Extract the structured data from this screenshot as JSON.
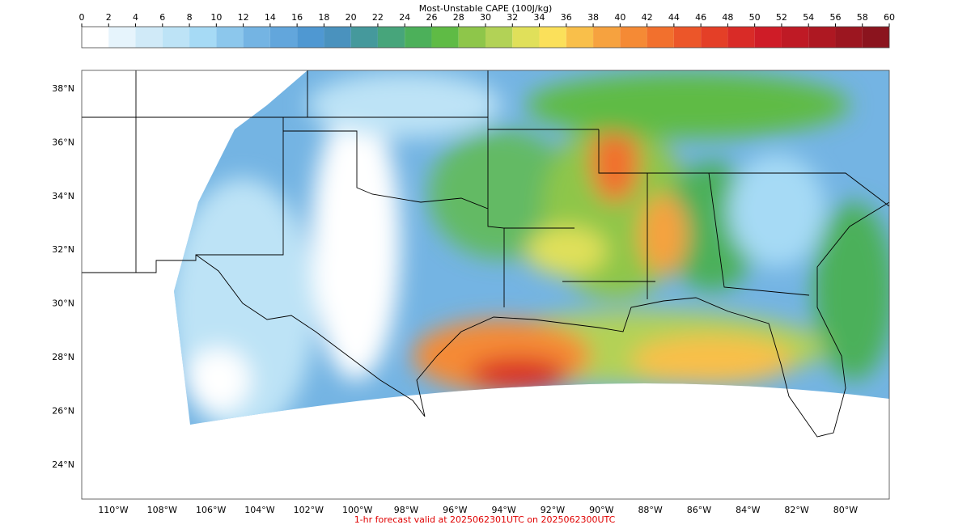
{
  "colorbar": {
    "title": "Most-Unstable CAPE (100J/kg)",
    "ticks": [
      0,
      2,
      4,
      6,
      8,
      10,
      12,
      14,
      16,
      18,
      20,
      22,
      24,
      26,
      28,
      30,
      32,
      34,
      36,
      38,
      40,
      42,
      44,
      46,
      48,
      50,
      52,
      54,
      56,
      58,
      60
    ],
    "colors": [
      "#ffffff",
      "#e6f4fc",
      "#d0eaf8",
      "#bde3f6",
      "#a6daf5",
      "#8cc7ec",
      "#74b4e3",
      "#62a6dc",
      "#4f98d2",
      "#4a92be",
      "#45999c",
      "#47a57b",
      "#4cb05a",
      "#5fbb45",
      "#8ec64a",
      "#b2d256",
      "#e0e05a",
      "#fbe05a",
      "#f9bf4a",
      "#f6a23f",
      "#f58a35",
      "#f2702d",
      "#ec5629",
      "#e43f27",
      "#d92b27",
      "#cf1c27",
      "#bf1a25",
      "#ae1822",
      "#9c1620",
      "#8b141e"
    ]
  },
  "map": {
    "lat_labels": [
      "38°N",
      "36°N",
      "34°N",
      "32°N",
      "30°N",
      "28°N",
      "26°N",
      "24°N"
    ],
    "lon_labels": [
      "110°W",
      "108°W",
      "106°W",
      "104°W",
      "102°W",
      "100°W",
      "98°W",
      "96°W",
      "94°W",
      "92°W",
      "90°W",
      "88°W",
      "86°W",
      "84°W",
      "82°W",
      "80°W"
    ]
  },
  "footer": "1-hr forecast valid at 2025062301UTC on 2025062300UTC"
}
